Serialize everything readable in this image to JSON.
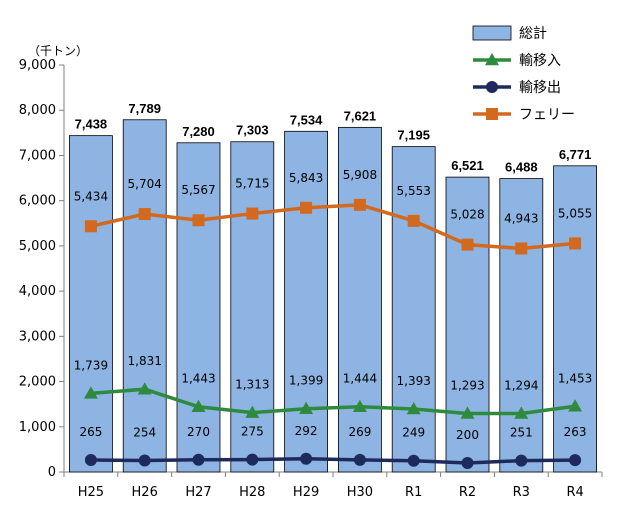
{
  "chart_data": {
    "type": "bar",
    "unit_label": "（千トン）",
    "categories": [
      "H25",
      "H26",
      "H27",
      "H28",
      "H29",
      "H30",
      "R1",
      "R2",
      "R3",
      "R4"
    ],
    "y_ticks": [
      "0",
      "1,000",
      "2,000",
      "3,000",
      "4,000",
      "5,000",
      "6,000",
      "7,000",
      "8,000",
      "9,000"
    ],
    "ylim": [
      0,
      9000
    ],
    "grid": false,
    "legend_position": "top-right",
    "series": [
      {
        "name": "総計",
        "type": "bar",
        "color": "#8DB4E2",
        "values": [
          7438,
          7789,
          7280,
          7303,
          7534,
          7621,
          7195,
          6521,
          6488,
          6771
        ],
        "labels": [
          "7,438",
          "7,789",
          "7,280",
          "7,303",
          "7,534",
          "7,621",
          "7,195",
          "6,521",
          "6,488",
          "6,771"
        ]
      },
      {
        "name": "輸移入",
        "type": "line",
        "color": "#2E8B3E",
        "marker": "triangle",
        "values": [
          1739,
          1831,
          1443,
          1313,
          1399,
          1444,
          1393,
          1293,
          1294,
          1453
        ],
        "labels": [
          "1,739",
          "1,831",
          "1,443",
          "1,313",
          "1,399",
          "1,444",
          "1,393",
          "1,293",
          "1,294",
          "1,453"
        ]
      },
      {
        "name": "輸移出",
        "type": "line",
        "color": "#1F2A5C",
        "marker": "circle",
        "values": [
          265,
          254,
          270,
          275,
          292,
          269,
          249,
          200,
          251,
          263
        ],
        "labels": [
          "265",
          "254",
          "270",
          "275",
          "292",
          "269",
          "249",
          "200",
          "251",
          "263"
        ]
      },
      {
        "name": "フェリー",
        "type": "line",
        "color": "#D2691E",
        "marker": "square",
        "values": [
          5434,
          5704,
          5567,
          5715,
          5843,
          5908,
          5553,
          5028,
          4943,
          5055
        ],
        "labels": [
          "5,434",
          "5,704",
          "5,567",
          "5,715",
          "5,843",
          "5,908",
          "5,553",
          "5,028",
          "4,943",
          "5,055"
        ]
      }
    ]
  }
}
